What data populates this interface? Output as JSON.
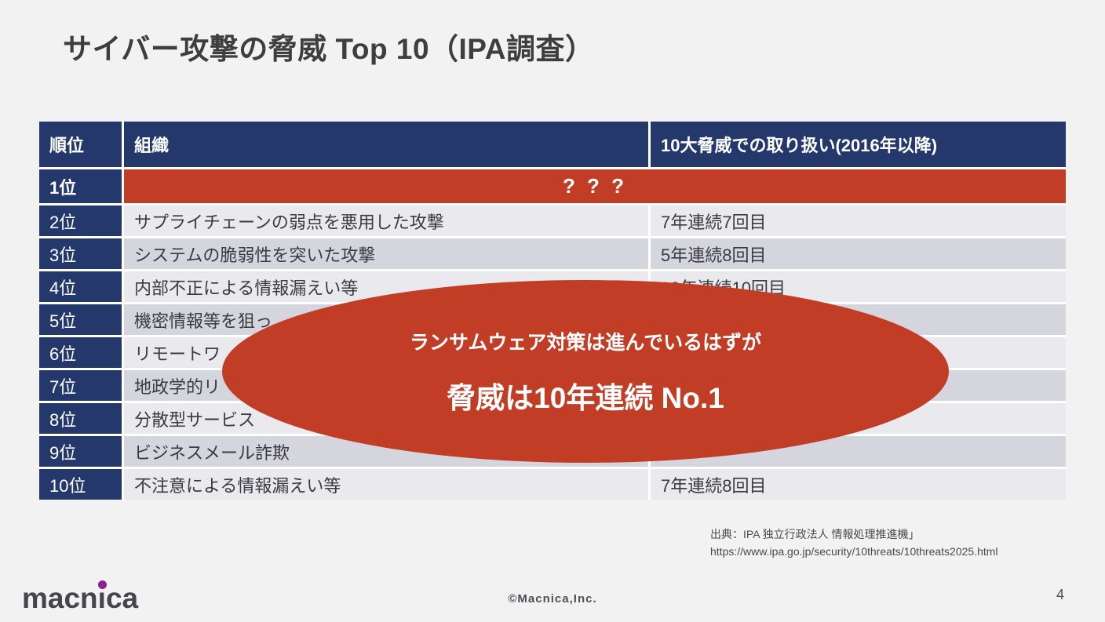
{
  "slide": {
    "title": "サイバー攻撃の脅威 Top 10（IPA調査）",
    "page_number": "4"
  },
  "table": {
    "headers": {
      "rank": "順位",
      "org": "組織",
      "history": "10大脅威での取り扱い(2016年以降)"
    },
    "row1": {
      "rank": "1位",
      "value": "? ? ?"
    },
    "rows": [
      {
        "rank": "2位",
        "org": "サプライチェーンの弱点を悪用した攻撃",
        "history": "7年連続7回目"
      },
      {
        "rank": "3位",
        "org": "システムの脆弱性を突いた攻撃",
        "history": "5年連続8回目"
      },
      {
        "rank": "4位",
        "org": "内部不正による情報漏えい等",
        "history": "10年連続10回目"
      },
      {
        "rank": "5位",
        "org": "機密情報等を狙っ",
        "history": ""
      },
      {
        "rank": "6位",
        "org": "リモートワ",
        "history": ""
      },
      {
        "rank": "7位",
        "org": "地政学的リ",
        "history": ""
      },
      {
        "rank": "8位",
        "org": "分散型サービス",
        "history": ""
      },
      {
        "rank": "9位",
        "org": "ビジネスメール詐欺",
        "history": ""
      },
      {
        "rank": "10位",
        "org": "不注意による情報漏えい等",
        "history": "7年連続8回目"
      }
    ]
  },
  "overlay": {
    "line1": "ランサムウェア対策は進んでいるはずが",
    "line2": "脅威は10年連続 No.1"
  },
  "source": {
    "line1": "出典：IPA 独立行政法人 情報処理推進機」",
    "line2": "https://www.ipa.go.jp/security/10threats/10threats2025.html"
  },
  "footer": {
    "logo_pre": "macn",
    "logo_i": "ı",
    "logo_post": "ca",
    "copyright": "©Macnica,Inc."
  },
  "colors": {
    "navy": "#24386b",
    "red": "#c23d26",
    "row_light": "#e9e9ee",
    "row_dark": "#d5d5dd",
    "logo_dot_purple": "#8e2190",
    "background": "#f2f2f3"
  }
}
